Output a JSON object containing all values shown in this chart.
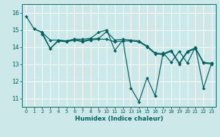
{
  "bg_color": "#cce8e8",
  "grid_color": "#ffffff",
  "line_color": "#006060",
  "xlabel": "Humidex (Indice chaleur)",
  "ylim": [
    10.5,
    16.5
  ],
  "xlim": [
    -0.5,
    23.5
  ],
  "yticks": [
    11,
    12,
    13,
    14,
    15,
    16
  ],
  "xticks": [
    0,
    1,
    2,
    3,
    4,
    5,
    6,
    7,
    8,
    9,
    10,
    11,
    12,
    13,
    14,
    15,
    16,
    17,
    18,
    19,
    20,
    21,
    22,
    23
  ],
  "series": [
    {
      "x": [
        0,
        1,
        2,
        3,
        4,
        5,
        6,
        7,
        8,
        9,
        10,
        11,
        12,
        13,
        14,
        15,
        16,
        17,
        18,
        19,
        20,
        21,
        22,
        23
      ],
      "y": [
        15.8,
        15.05,
        14.85,
        14.4,
        14.4,
        14.35,
        14.45,
        14.45,
        14.5,
        14.85,
        15.0,
        13.8,
        14.4,
        11.6,
        10.8,
        12.2,
        11.15,
        13.65,
        13.1,
        13.75,
        13.05,
        14.0,
        11.6,
        13.05
      ]
    },
    {
      "x": [
        1,
        2,
        3,
        4,
        5,
        6,
        7,
        8,
        9,
        10,
        11,
        12,
        13,
        14,
        15,
        16,
        17,
        18,
        19,
        20,
        21,
        22,
        23
      ],
      "y": [
        15.05,
        14.85,
        13.9,
        14.4,
        14.35,
        14.45,
        14.35,
        14.45,
        14.5,
        14.9,
        14.4,
        14.45,
        14.4,
        14.35,
        14.05,
        13.65,
        13.6,
        13.8,
        13.05,
        13.75,
        13.95,
        13.1,
        13.05
      ]
    },
    {
      "x": [
        2,
        3,
        4,
        5,
        6,
        7,
        8,
        9,
        10,
        11,
        12,
        13,
        14,
        15,
        16,
        17,
        18,
        19,
        20,
        21,
        22,
        23
      ],
      "y": [
        14.75,
        13.9,
        14.35,
        14.3,
        14.4,
        14.3,
        14.4,
        14.45,
        14.45,
        14.3,
        14.35,
        14.35,
        14.3,
        14.0,
        13.6,
        13.55,
        13.75,
        13.0,
        13.7,
        13.9,
        13.05,
        13.0
      ]
    }
  ]
}
